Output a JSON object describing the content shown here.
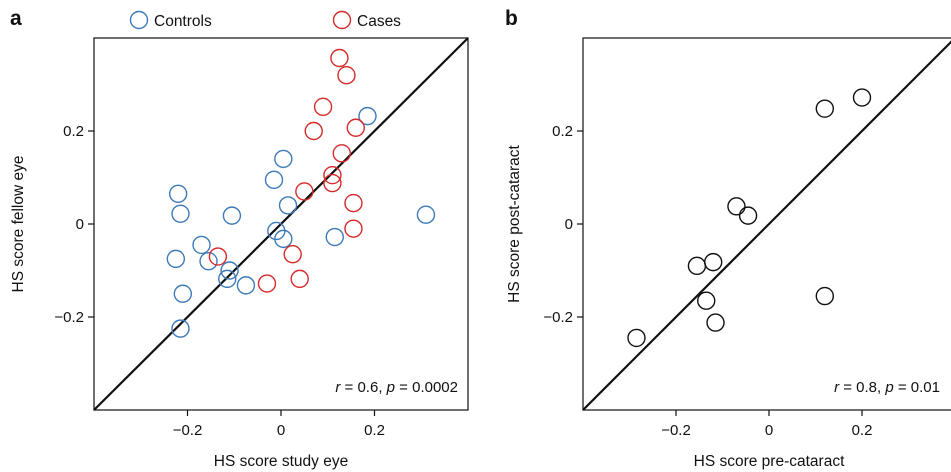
{
  "panels": {
    "a": {
      "letter": "a"
    },
    "b": {
      "letter": "b"
    }
  },
  "chart_data": [
    {
      "panel": "a",
      "type": "scatter",
      "xlabel": "HS score study eye",
      "ylabel": "HS score fellow eye",
      "xlim": [
        -0.4,
        0.4
      ],
      "ylim": [
        -0.4,
        0.4
      ],
      "xticks": [
        -0.2,
        0,
        0.2
      ],
      "yticks": [
        -0.2,
        0,
        0.2
      ],
      "xtick_labels": [
        "−0.2",
        "0",
        "0.2"
      ],
      "ytick_labels": [
        "−0.2",
        "0",
        "0.2"
      ],
      "reference_line": "identity (y = x)",
      "annotation": {
        "r_symbol": "r",
        "r_text": " = 0.6, ",
        "p_symbol": "p",
        "p_text": " = 0.0002"
      },
      "legend": {
        "placement": "top"
      },
      "grid": false,
      "series": [
        {
          "name": "Controls",
          "color": "#3d7ab8",
          "points": [
            [
              -0.22,
              0.065
            ],
            [
              -0.215,
              0.022
            ],
            [
              -0.225,
              -0.075
            ],
            [
              -0.21,
              -0.15
            ],
            [
              -0.215,
              -0.225
            ],
            [
              -0.17,
              -0.045
            ],
            [
              -0.155,
              -0.08
            ],
            [
              -0.105,
              0.018
            ],
            [
              -0.11,
              -0.1
            ],
            [
              -0.115,
              -0.118
            ],
            [
              -0.075,
              -0.132
            ],
            [
              -0.015,
              0.095
            ],
            [
              0.005,
              0.14
            ],
            [
              0.015,
              0.04
            ],
            [
              -0.01,
              -0.015
            ],
            [
              0.005,
              -0.032
            ],
            [
              0.115,
              -0.028
            ],
            [
              0.185,
              0.232
            ],
            [
              0.31,
              0.02
            ]
          ]
        },
        {
          "name": "Cases",
          "color": "#d62a2a",
          "points": [
            [
              0.125,
              0.357
            ],
            [
              0.14,
              0.32
            ],
            [
              0.09,
              0.252
            ],
            [
              0.07,
              0.2
            ],
            [
              0.16,
              0.207
            ],
            [
              0.13,
              0.152
            ],
            [
              0.11,
              0.105
            ],
            [
              0.11,
              0.088
            ],
            [
              0.05,
              0.07
            ],
            [
              0.155,
              0.045
            ],
            [
              0.155,
              -0.01
            ],
            [
              0.025,
              -0.065
            ],
            [
              0.04,
              -0.118
            ],
            [
              -0.03,
              -0.128
            ],
            [
              -0.135,
              -0.07
            ]
          ]
        }
      ]
    },
    {
      "panel": "b",
      "type": "scatter",
      "xlabel": "HS score pre-cataract",
      "ylabel": "HS score post-cataract",
      "xlim": [
        -0.4,
        0.4
      ],
      "ylim": [
        -0.4,
        0.4
      ],
      "xticks": [
        -0.2,
        0,
        0.2
      ],
      "yticks": [
        -0.2,
        0,
        0.2
      ],
      "xtick_labels": [
        "−0.2",
        "0",
        "0.2"
      ],
      "ytick_labels": [
        "−0.2",
        "0",
        "0.2"
      ],
      "reference_line": "identity (y = x)",
      "annotation": {
        "r_symbol": "r",
        "r_text": " = 0.8, ",
        "p_symbol": "p",
        "p_text": " = 0.01"
      },
      "grid": false,
      "series": [
        {
          "color": "#111111",
          "points": [
            [
              0.2,
              0.272
            ],
            [
              0.12,
              0.248
            ],
            [
              -0.07,
              0.038
            ],
            [
              -0.045,
              0.018
            ],
            [
              -0.12,
              -0.082
            ],
            [
              -0.155,
              -0.09
            ],
            [
              -0.135,
              -0.165
            ],
            [
              -0.115,
              -0.212
            ],
            [
              0.12,
              -0.155
            ],
            [
              -0.285,
              -0.245
            ]
          ]
        }
      ]
    }
  ]
}
